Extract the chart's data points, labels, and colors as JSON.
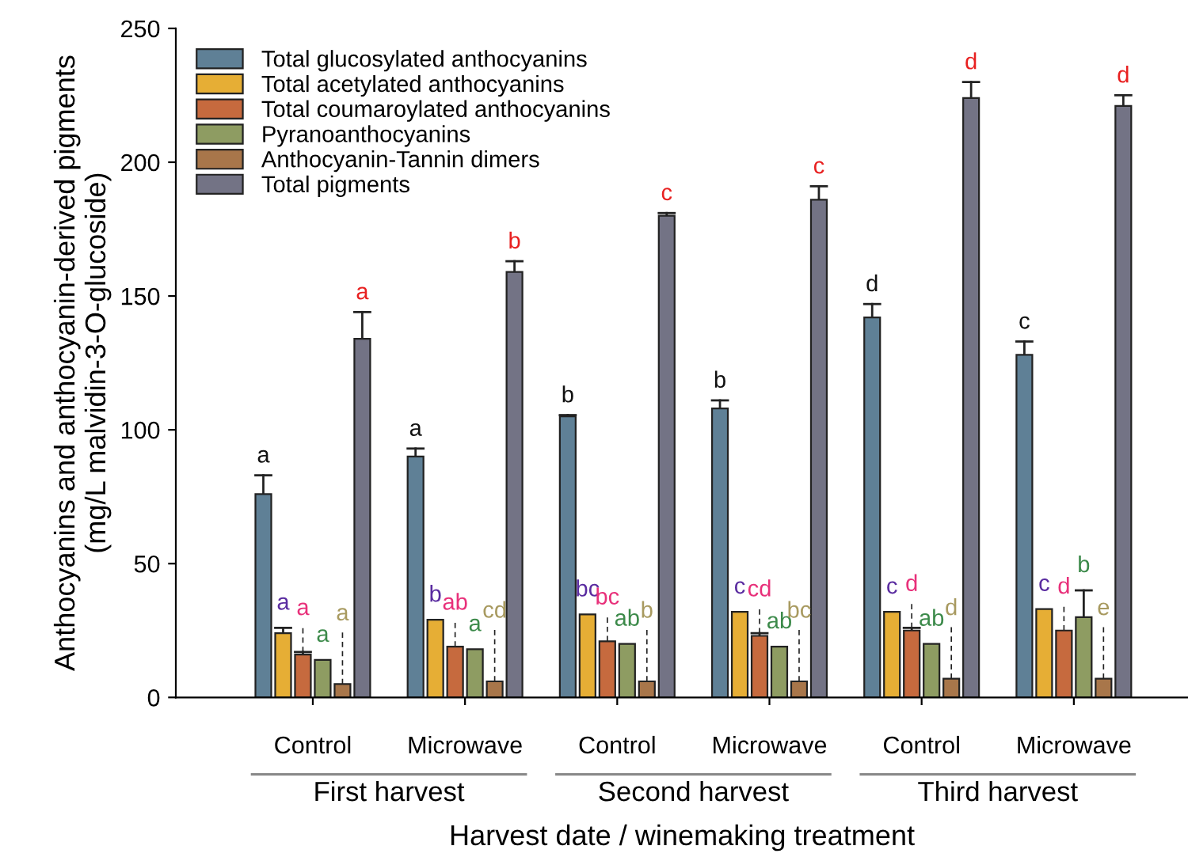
{
  "chart_data": {
    "type": "bar",
    "xlabel": "Harvest date / winemaking treatment",
    "ylabel": "Anthocyanins and anthocyanin-derived pigments\n(mg/L malvidin-3-O-glucoside)",
    "categories": [
      "Control",
      "Microwave",
      "Control",
      "Microwave",
      "Control",
      "Microwave"
    ],
    "annotations": [
      "First harvest",
      "Second harvest",
      "Third harvest"
    ],
    "ylim": [
      0,
      250
    ],
    "yticks": [
      0,
      50,
      100,
      150,
      200,
      250
    ],
    "legend": "top left",
    "grid": false,
    "series": [
      {
        "name": "Total glucosylated anthocyanins",
        "color": "#5f8096",
        "values": [
          76,
          90,
          105,
          108,
          142,
          128
        ],
        "errors": [
          [
            76,
            83
          ],
          [
            90,
            93
          ],
          [
            105,
            105.5
          ],
          [
            108,
            111
          ],
          [
            142,
            147
          ],
          [
            128,
            133
          ]
        ],
        "value_labels": [
          "a",
          "a",
          "b",
          "b",
          "d",
          "c"
        ]
      },
      {
        "name": "Total acetylated anthocyanins",
        "color": "#e6ae35",
        "values": [
          24,
          29,
          31,
          32,
          32,
          33
        ],
        "errors": [
          [
            24,
            26
          ],
          null,
          null,
          null,
          null,
          null
        ],
        "value_labels": [
          "a",
          "b",
          "bc",
          "c",
          "c",
          "c"
        ]
      },
      {
        "name": "Total coumaroylated anthocyanins",
        "color": "#c66a3e",
        "values": [
          16,
          19,
          21,
          23,
          25,
          25
        ],
        "errors": [
          [
            16,
            17
          ],
          null,
          null,
          [
            23,
            24
          ],
          [
            25,
            26
          ],
          null
        ],
        "value_labels": [
          "a",
          "ab",
          "bc",
          "cd",
          "d",
          "d"
        ]
      },
      {
        "name": "Pyranoanthocyanins",
        "color": "#8e9c62",
        "values": [
          14,
          18,
          20,
          19,
          20,
          30
        ],
        "errors": [
          null,
          null,
          null,
          null,
          null,
          [
            30,
            40
          ]
        ],
        "value_labels": [
          "a",
          "a",
          "ab",
          "ab",
          "ab",
          "b"
        ]
      },
      {
        "name": "Anthocyanin-Tannin dimers",
        "color": "#a8764a",
        "values": [
          5,
          6,
          6,
          6,
          7,
          7
        ],
        "value_labels": [
          "a",
          "cd",
          "b",
          "bc",
          "d",
          "e"
        ]
      },
      {
        "name": "Total pigments",
        "color": "#737385",
        "values": [
          134,
          159,
          180,
          186,
          224,
          221
        ],
        "errors": [
          [
            134,
            144
          ],
          [
            159,
            163
          ],
          [
            180,
            181
          ],
          [
            186,
            191
          ],
          [
            224,
            230
          ],
          [
            221,
            225
          ]
        ],
        "value_labels": [
          "a",
          "b",
          "c",
          "c",
          "d",
          "d"
        ]
      }
    ]
  }
}
